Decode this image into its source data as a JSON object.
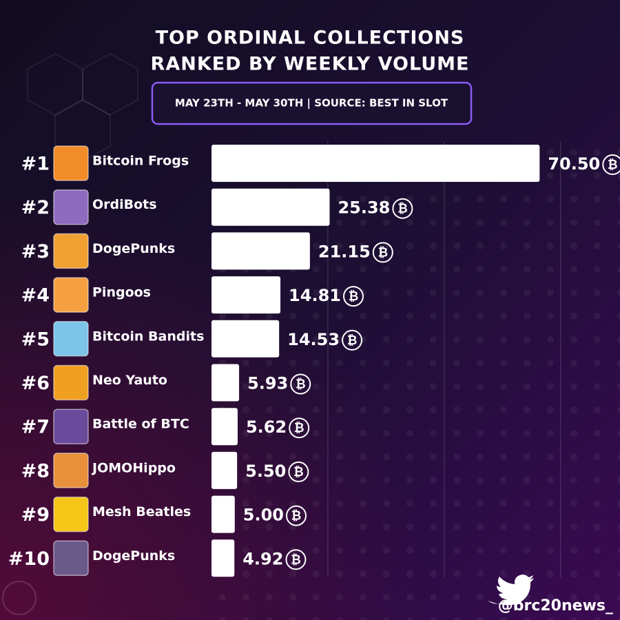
{
  "chart_data": {
    "type": "bar",
    "orientation": "horizontal",
    "title": [
      "TOP ORDINAL COLLECTIONS",
      "RANKED BY WEEKLY VOLUME"
    ],
    "subtitle": "MAY 23TH - MAY 30TH | SOURCE: BEST IN SLOT",
    "ranks": [
      "#1",
      "#2",
      "#3",
      "#4",
      "#5",
      "#6",
      "#7",
      "#8",
      "#9",
      "#10"
    ],
    "categories": [
      "Bitcoin Frogs",
      "OrdiBots",
      "DogePunks",
      "Pingoos",
      "Bitcoin Bandits",
      "Neo Yauto",
      "Battle of BTC",
      "JOMOHippo",
      "Mesh Beatles",
      "DogePunks"
    ],
    "values": [
      70.5,
      25.38,
      21.15,
      14.81,
      14.53,
      5.93,
      5.62,
      5.5,
      5.0,
      4.92
    ],
    "value_labels": [
      "70.50",
      "25.38",
      "21.15",
      "14.81",
      "14.53",
      "5.93",
      "5.62",
      "5.50",
      "5.00",
      "4.92"
    ],
    "currency_symbol": "₿",
    "color": "#ffffff",
    "xlim": [
      0,
      78
    ],
    "xticks": [
      25,
      50,
      75
    ],
    "grid": true,
    "handle": "@brc20news_"
  }
}
